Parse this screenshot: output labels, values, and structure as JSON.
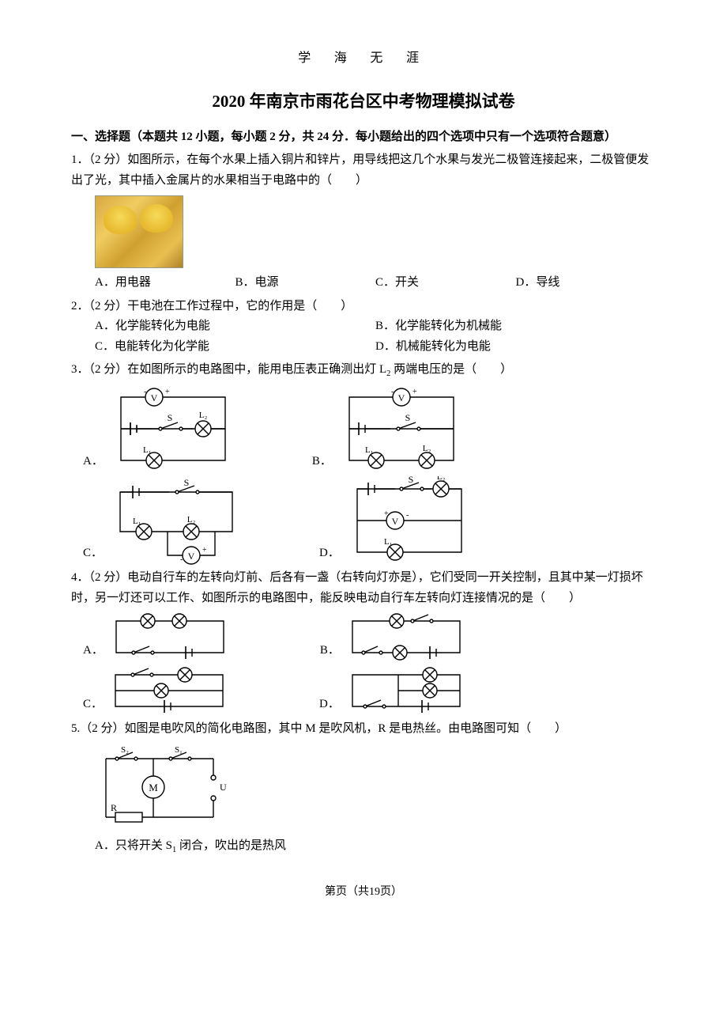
{
  "motto": "学  海  无  涯",
  "title": "2020 年南京市雨花台区中考物理模拟试卷",
  "section1_heading": "一、选择题（本题共 12 小题，每小题 2 分，共 24 分．每小题给出的四个选项中只有一个选项符合题意）",
  "q1": {
    "stem": "1．（2 分）如图所示，在每个水果上插入铜片和锌片，用导线把这几个水果与发光二极管连接起来，二极管便发出了光，其中插入金属片的水果相当于电路中的（　　）",
    "A": "A．用电器",
    "B": "B．电源",
    "C": "C．开关",
    "D": "D．导线"
  },
  "q2": {
    "stem": "2．（2 分）干电池在工作过程中，它的作用是（　　）",
    "A": "A．化学能转化为电能",
    "B": "B．化学能转化为机械能",
    "C": "C．电能转化为化学能",
    "D": "D．机械能转化为电能"
  },
  "q3": {
    "stem_html": "3．（2 分）在如图所示的电路图中，能用电压表正确测出灯 L<span class=\"sub\">2</span> 两端电压的是（　　）"
  },
  "q4": {
    "stem": "4．（2 分）电动自行车的左转向灯前、后各有一盏（右转向灯亦是），它们受同一开关控制，且其中某一灯损坏时，另一灯还可以工作、如图所示的电路图中，能反映电动自行车左转向灯连接情况的是（　　）"
  },
  "q5": {
    "stem": "5.（2 分）如图是电吹风的简化电路图，其中 M 是吹风机，R 是电热丝。由电路图可知（　　）",
    "optA_html": "A．只将开关 S<span class=\"sub\">1</span> 闭合，吹出的是热风"
  },
  "footer": "第页（共19页）",
  "colors": {
    "stroke": "#000000",
    "bg": "#ffffff"
  }
}
